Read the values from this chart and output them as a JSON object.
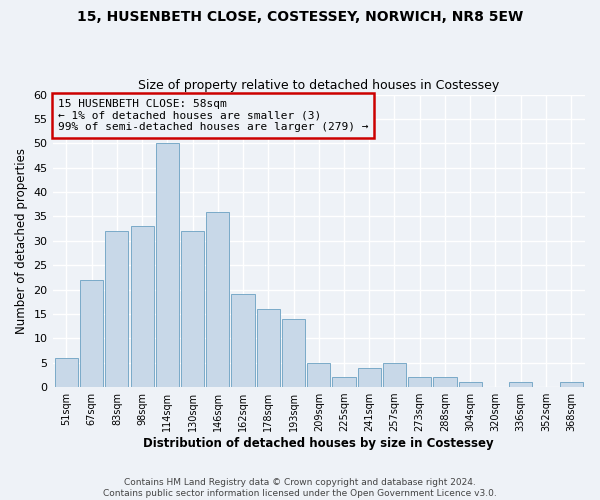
{
  "title": "15, HUSENBETH CLOSE, COSTESSEY, NORWICH, NR8 5EW",
  "subtitle": "Size of property relative to detached houses in Costessey",
  "xlabel": "Distribution of detached houses by size in Costessey",
  "ylabel": "Number of detached properties",
  "bar_color": "#c8d8e8",
  "bar_edge_color": "#7aaac8",
  "annotation_box_color": "#cc0000",
  "categories": [
    "51sqm",
    "67sqm",
    "83sqm",
    "98sqm",
    "114sqm",
    "130sqm",
    "146sqm",
    "162sqm",
    "178sqm",
    "193sqm",
    "209sqm",
    "225sqm",
    "241sqm",
    "257sqm",
    "273sqm",
    "288sqm",
    "304sqm",
    "320sqm",
    "336sqm",
    "352sqm",
    "368sqm"
  ],
  "values": [
    6,
    22,
    32,
    33,
    50,
    32,
    36,
    19,
    16,
    14,
    5,
    2,
    4,
    5,
    2,
    2,
    1,
    0,
    1,
    0,
    1
  ],
  "ylim": [
    0,
    60
  ],
  "yticks": [
    0,
    5,
    10,
    15,
    20,
    25,
    30,
    35,
    40,
    45,
    50,
    55,
    60
  ],
  "annotation_line1": "15 HUSENBETH CLOSE: 58sqm",
  "annotation_line2": "← 1% of detached houses are smaller (3)",
  "annotation_line3": "99% of semi-detached houses are larger (279) →",
  "footer_line1": "Contains HM Land Registry data © Crown copyright and database right 2024.",
  "footer_line2": "Contains public sector information licensed under the Open Government Licence v3.0.",
  "background_color": "#eef2f7",
  "grid_color": "#ffffff"
}
